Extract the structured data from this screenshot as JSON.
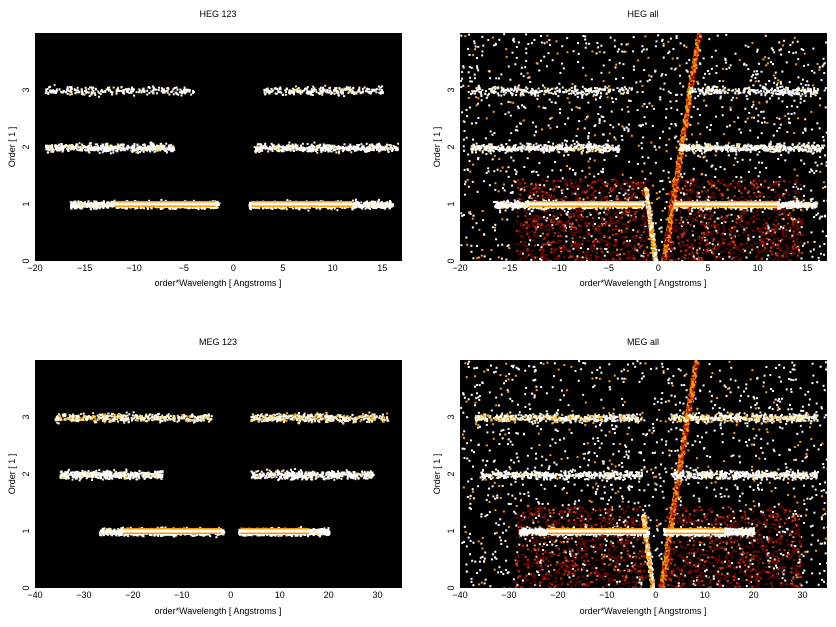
{
  "chart_data": [
    {
      "type": "heatmap",
      "title": "HEG 123",
      "xlabel": "order*Wavelength [ Angstroms ]",
      "ylabel": "Order [ 1 ]",
      "xlim": [
        -20,
        17
      ],
      "ylim": [
        0,
        4
      ],
      "xticks": [
        -20,
        -15,
        -10,
        -5,
        0,
        5,
        10,
        15
      ],
      "yticks": [
        0,
        1,
        2,
        3
      ],
      "colormap": [
        "#000000",
        "#7a0000",
        "#d23000",
        "#ff9a00",
        "#ffe37a",
        "#ffffff"
      ],
      "bands": [
        {
          "order": 1,
          "x_ranges": [
            [
              -16.5,
              -1.5
            ],
            [
              1.5,
              16
            ]
          ],
          "intensity": "strong",
          "core_x_ranges": [
            [
              -12,
              -1.8
            ],
            [
              1.8,
              12
            ]
          ]
        },
        {
          "order": 2,
          "x_ranges": [
            [
              -19,
              -6
            ],
            [
              2,
              16.5
            ]
          ],
          "intensity": "medium"
        },
        {
          "order": 3,
          "x_ranges": [
            [
              -19,
              -4
            ],
            [
              3,
              15
            ]
          ],
          "intensity": "weak"
        }
      ],
      "wedges": false,
      "background": false
    },
    {
      "type": "heatmap",
      "title": "HEG all",
      "xlabel": "order*Wavelength [ Angstroms ]",
      "ylabel": "Order [ 1 ]",
      "xlim": [
        -20,
        17
      ],
      "ylim": [
        0,
        4
      ],
      "xticks": [
        -20,
        -15,
        -10,
        -5,
        0,
        5,
        10,
        15
      ],
      "yticks": [
        0,
        1,
        2,
        3
      ],
      "colormap": [
        "#000000",
        "#7a0000",
        "#d23000",
        "#ff9a00",
        "#ffe37a",
        "#ffffff"
      ],
      "bands": [
        {
          "order": 1,
          "x_ranges": [
            [
              -16.5,
              -1.5
            ],
            [
              1.5,
              16
            ]
          ],
          "intensity": "strong",
          "core_x_ranges": [
            [
              -13,
              -1.6
            ],
            [
              1.6,
              12
            ]
          ]
        },
        {
          "order": 2,
          "x_ranges": [
            [
              -19,
              -4
            ],
            [
              2,
              16.5
            ]
          ],
          "intensity": "medium"
        },
        {
          "order": 3,
          "x_ranges": [
            [
              -19,
              -3
            ],
            [
              3,
              16
            ]
          ],
          "intensity": "weak"
        }
      ],
      "wedges": true,
      "background": true
    },
    {
      "type": "heatmap",
      "title": "MEG 123",
      "xlabel": "order*Wavelength [ Angstroms ]",
      "ylabel": "Order [ 1 ]",
      "xlim": [
        -40,
        35
      ],
      "ylim": [
        0,
        4
      ],
      "xticks": [
        -40,
        -30,
        -20,
        -10,
        0,
        10,
        20,
        30
      ],
      "yticks": [
        0,
        1,
        2,
        3
      ],
      "colormap": [
        "#000000",
        "#7a0000",
        "#d23000",
        "#ff9a00",
        "#ffe37a",
        "#ffffff"
      ],
      "bands": [
        {
          "order": 1,
          "x_ranges": [
            [
              -27,
              -1.5
            ],
            [
              1.5,
              20
            ]
          ],
          "intensity": "strong",
          "core_x_ranges": [
            [
              -22,
              -2
            ],
            [
              2,
              16
            ]
          ]
        },
        {
          "order": 2,
          "x_ranges": [
            [
              -35,
              -14
            ],
            [
              4,
              29
            ]
          ],
          "intensity": "medium"
        },
        {
          "order": 3,
          "x_ranges": [
            [
              -36,
              -4
            ],
            [
              4,
              32
            ]
          ],
          "intensity": "medium-hot"
        }
      ],
      "wedges": false,
      "background": false
    },
    {
      "type": "heatmap",
      "title": "MEG all",
      "xlabel": "order*Wavelength [ Angstroms ]",
      "ylabel": "Order [ 1 ]",
      "xlim": [
        -40,
        35
      ],
      "ylim": [
        0,
        4
      ],
      "xticks": [
        -40,
        -30,
        -20,
        -10,
        0,
        10,
        20,
        30
      ],
      "yticks": [
        0,
        1,
        2,
        3
      ],
      "colormap": [
        "#000000",
        "#7a0000",
        "#d23000",
        "#ff9a00",
        "#ffe37a",
        "#ffffff"
      ],
      "bands": [
        {
          "order": 1,
          "x_ranges": [
            [
              -28,
              -1.5
            ],
            [
              1.5,
              20
            ]
          ],
          "intensity": "strong",
          "core_x_ranges": [
            [
              -22,
              -2
            ],
            [
              2,
              14
            ]
          ]
        },
        {
          "order": 2,
          "x_ranges": [
            [
              -36,
              -3
            ],
            [
              3,
              33
            ]
          ],
          "intensity": "medium"
        },
        {
          "order": 3,
          "x_ranges": [
            [
              -37,
              -3
            ],
            [
              3,
              33
            ]
          ],
          "intensity": "medium-hot"
        }
      ],
      "wedges": true,
      "background": true
    }
  ]
}
